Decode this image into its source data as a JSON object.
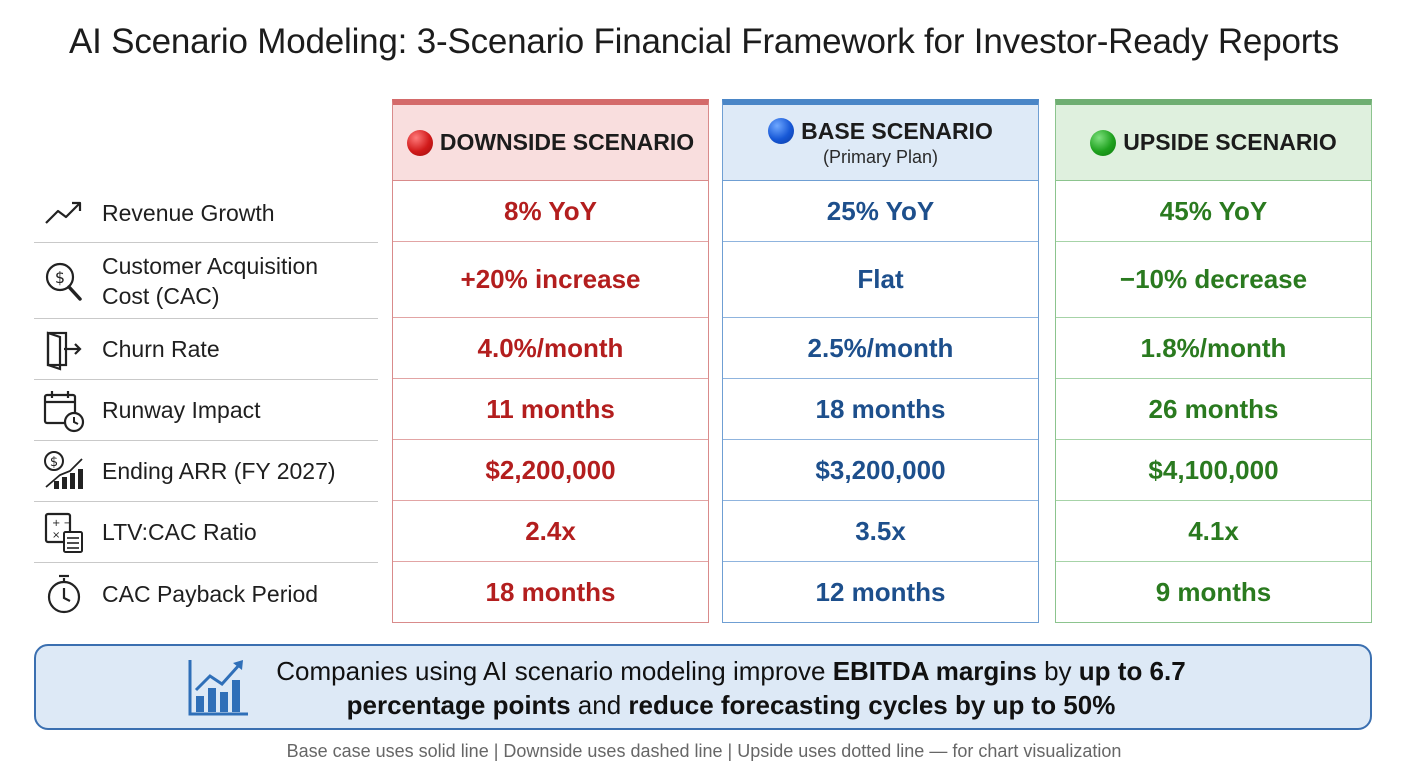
{
  "title": "AI Scenario Modeling: 3-Scenario Financial Framework for Investor-Ready Reports",
  "scenarios": [
    {
      "label": "DOWNSIDE SCENARIO",
      "sub": "",
      "dot": "red-circle",
      "accent": "#b31e1e",
      "values": [
        "8% YoY",
        "+20% increase",
        "4.0%/month",
        "11 months",
        "$2,200,000",
        "2.4x",
        "18 months"
      ]
    },
    {
      "label": "BASE SCENARIO",
      "sub": "(Primary Plan)",
      "dot": "blue-circle",
      "accent": "#1d4f8c",
      "values": [
        "25% YoY",
        "Flat",
        "2.5%/month",
        "18 months",
        "$3,200,000",
        "3.5x",
        "12 months"
      ]
    },
    {
      "label": "UPSIDE SCENARIO",
      "sub": "",
      "dot": "green-circle",
      "accent": "#2a7a1f",
      "values": [
        "45% YoY",
        "−10% decrease",
        "1.8%/month",
        "26 months",
        "$4,100,000",
        "4.1x",
        "9 months"
      ]
    }
  ],
  "metrics": [
    {
      "label": "Revenue Growth",
      "icon": "trend-up-icon"
    },
    {
      "label": "Customer Acquisition Cost (CAC)",
      "icon": "dollar-search-icon"
    },
    {
      "label": "Churn Rate",
      "icon": "exit-door-icon"
    },
    {
      "label": "Runway Impact",
      "icon": "calendar-clock-icon"
    },
    {
      "label": "Ending ARR (FY 2027)",
      "icon": "dollar-bars-icon"
    },
    {
      "label": "LTV:CAC Ratio",
      "icon": "calculator-icon"
    },
    {
      "label": "CAC Payback Period",
      "icon": "stopwatch-icon"
    }
  ],
  "callout": {
    "icon": "bar-chart-growth-icon",
    "p1": "Companies using AI scenario modeling improve ",
    "b1": "EBITDA margins",
    "p2": " by ",
    "b2": "up to 6.7 percentage points",
    "p3": " and ",
    "b3": "reduce forecasting cycles by up to 50%"
  },
  "footnote": "Base case uses solid line | Downside uses dashed line | Upside uses dotted line — for chart visualization"
}
